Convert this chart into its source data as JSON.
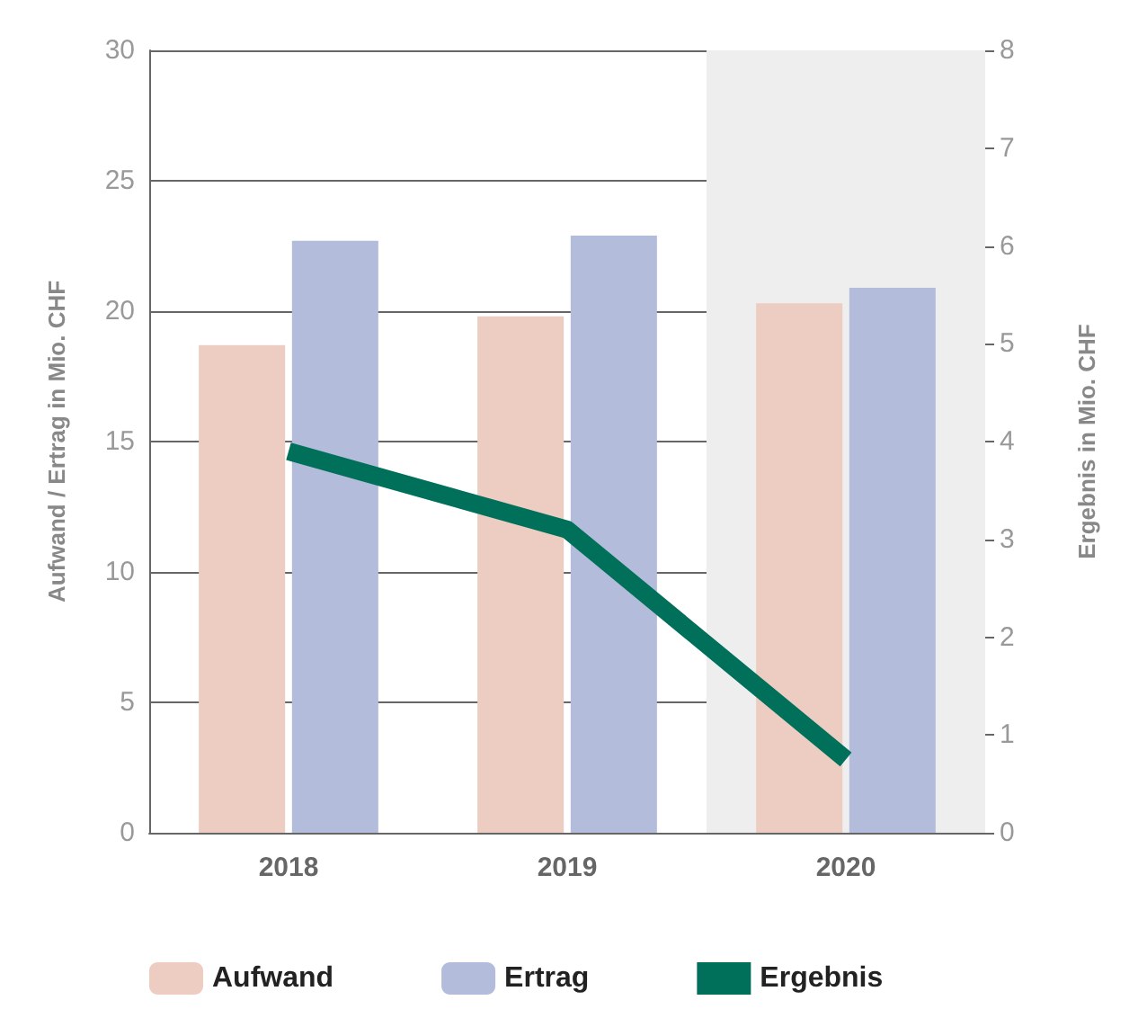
{
  "chart_data": {
    "type": "bar",
    "ylabel": "Aufwand / Ertrag in Mio. CHF",
    "y2label": "Ergebnis in Mio. CHF",
    "categories": [
      "2018",
      "2019",
      "2020"
    ],
    "series": [
      {
        "name": "Aufwand",
        "color": "#edcdc1",
        "values": [
          18.7,
          19.8,
          20.3
        ]
      },
      {
        "name": "Ertrag",
        "color": "#b4bcdb",
        "values": [
          22.7,
          22.9,
          20.9
        ]
      },
      {
        "name": "Ergebnis",
        "type": "line",
        "axis": "y2",
        "color": "#00705a",
        "values": [
          3.9,
          3.1,
          0.75
        ]
      }
    ],
    "ylim": [
      0,
      30
    ],
    "yticks": [
      0,
      5,
      10,
      15,
      20,
      25,
      30
    ],
    "y2lim": [
      0,
      8
    ],
    "y2ticks": [
      0,
      1,
      2,
      3,
      4,
      5,
      6,
      7,
      8
    ],
    "bands": [
      {
        "axis": "x",
        "from": "2020",
        "to": "2020",
        "color": "#eeeeee"
      }
    ],
    "grid": "y",
    "legend": "bottom",
    "marker": "none",
    "line_style": "solid"
  }
}
